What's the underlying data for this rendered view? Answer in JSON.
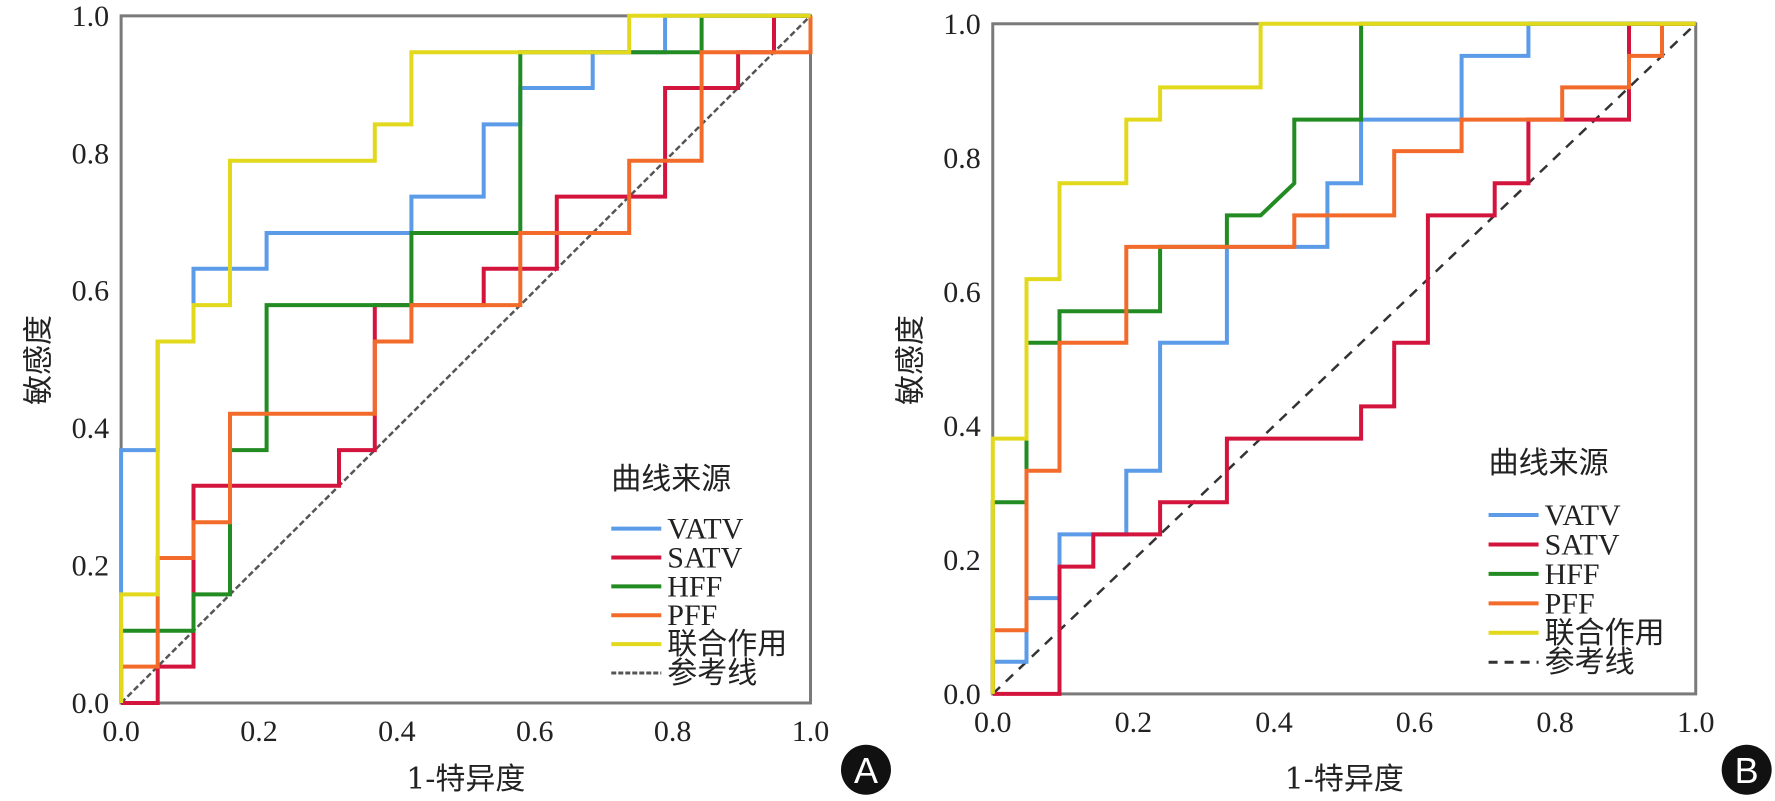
{
  "chart_data": [
    {
      "type": "line",
      "panel_label": "A",
      "title": "",
      "xlabel": "1-特异度",
      "ylabel": "敏感度",
      "xlim": [
        0,
        1
      ],
      "ylim": [
        0,
        1
      ],
      "xticks": [
        "0.0",
        "0.2",
        "0.4",
        "0.6",
        "0.8",
        "1.0"
      ],
      "yticks": [
        "0.0",
        "0.2",
        "0.4",
        "0.6",
        "0.8",
        "1.0"
      ],
      "grid": false,
      "legend": {
        "title": "曲线来源",
        "position": "bottom-right",
        "boxed": false
      },
      "series": [
        {
          "name": "VATV",
          "color": "#5b9be8",
          "dash": false,
          "x": [
            0,
            0,
            0.053,
            0.053,
            0.105,
            0.105,
            0.211,
            0.211,
            0.421,
            0.421,
            0.526,
            0.526,
            0.579,
            0.579,
            0.684,
            0.684,
            0.789,
            0.789,
            1
          ],
          "y": [
            0,
            0.368,
            0.368,
            0.526,
            0.526,
            0.632,
            0.632,
            0.684,
            0.684,
            0.737,
            0.737,
            0.842,
            0.842,
            0.895,
            0.895,
            0.947,
            0.947,
            1,
            1
          ]
        },
        {
          "name": "SATV",
          "color": "#d3143c",
          "dash": false,
          "x": [
            0,
            0.053,
            0.053,
            0.105,
            0.105,
            0.316,
            0.316,
            0.368,
            0.368,
            0.526,
            0.526,
            0.632,
            0.632,
            0.789,
            0.789,
            0.895,
            0.895,
            0.947,
            0.947,
            1
          ],
          "y": [
            0,
            0,
            0.053,
            0.053,
            0.316,
            0.316,
            0.368,
            0.368,
            0.579,
            0.579,
            0.632,
            0.632,
            0.737,
            0.737,
            0.895,
            0.895,
            0.947,
            0.947,
            1,
            1
          ]
        },
        {
          "name": "HFF",
          "color": "#228b22",
          "dash": false,
          "x": [
            0,
            0,
            0.105,
            0.105,
            0.158,
            0.158,
            0.211,
            0.211,
            0.421,
            0.421,
            0.579,
            0.579,
            0.842,
            0.842,
            1
          ],
          "y": [
            0,
            0.105,
            0.105,
            0.158,
            0.158,
            0.368,
            0.368,
            0.579,
            0.579,
            0.684,
            0.684,
            0.947,
            0.947,
            1,
            1
          ]
        },
        {
          "name": "PFF",
          "color": "#f26b2a",
          "dash": false,
          "x": [
            0,
            0,
            0.053,
            0.053,
            0.105,
            0.105,
            0.158,
            0.158,
            0.368,
            0.368,
            0.421,
            0.421,
            0.579,
            0.579,
            0.737,
            0.737,
            0.842,
            0.842,
            1,
            1
          ],
          "y": [
            0,
            0.053,
            0.053,
            0.211,
            0.211,
            0.263,
            0.263,
            0.421,
            0.421,
            0.526,
            0.526,
            0.579,
            0.579,
            0.684,
            0.684,
            0.789,
            0.789,
            0.947,
            0.947,
            1
          ]
        },
        {
          "name": "联合作用",
          "color": "#e3d91c",
          "dash": false,
          "x": [
            0,
            0,
            0.053,
            0.053,
            0.105,
            0.105,
            0.158,
            0.158,
            0.368,
            0.368,
            0.421,
            0.421,
            0.737,
            0.737,
            1
          ],
          "y": [
            0,
            0.158,
            0.158,
            0.526,
            0.526,
            0.579,
            0.579,
            0.789,
            0.789,
            0.842,
            0.842,
            0.947,
            0.947,
            1,
            1
          ]
        },
        {
          "name": "参考线",
          "color": "#555555",
          "dash": true,
          "x": [
            0,
            1
          ],
          "y": [
            0,
            1
          ]
        }
      ]
    },
    {
      "type": "line",
      "panel_label": "B",
      "title": "",
      "xlabel": "1-特异度",
      "ylabel": "敏感度",
      "xlim": [
        0,
        1
      ],
      "ylim": [
        0,
        1
      ],
      "xticks": [
        "0.0",
        "0.2",
        "0.4",
        "0.6",
        "0.8",
        "1.0"
      ],
      "yticks": [
        "0.0",
        "0.2",
        "0.4",
        "0.6",
        "0.8",
        "1.0"
      ],
      "grid": false,
      "legend": {
        "title": "曲线来源",
        "position": "bottom-right",
        "boxed": false
      },
      "series": [
        {
          "name": "VATV",
          "color": "#5b9be8",
          "dash": false,
          "x": [
            0,
            0,
            0.048,
            0.048,
            0.095,
            0.095,
            0.19,
            0.19,
            0.238,
            0.238,
            0.333,
            0.333,
            0.476,
            0.476,
            0.524,
            0.524,
            0.667,
            0.667,
            0.762,
            0.762,
            1
          ],
          "y": [
            0,
            0.048,
            0.048,
            0.143,
            0.143,
            0.238,
            0.238,
            0.333,
            0.333,
            0.524,
            0.524,
            0.667,
            0.667,
            0.762,
            0.762,
            0.857,
            0.857,
            0.952,
            0.952,
            1,
            1
          ]
        },
        {
          "name": "SATV",
          "color": "#d3143c",
          "dash": false,
          "x": [
            0,
            0.095,
            0.095,
            0.143,
            0.143,
            0.238,
            0.238,
            0.333,
            0.333,
            0.524,
            0.524,
            0.571,
            0.571,
            0.619,
            0.619,
            0.714,
            0.714,
            0.762,
            0.762,
            0.905,
            0.905,
            1
          ],
          "y": [
            0,
            0,
            0.19,
            0.19,
            0.238,
            0.238,
            0.286,
            0.286,
            0.381,
            0.381,
            0.429,
            0.429,
            0.524,
            0.524,
            0.714,
            0.714,
            0.762,
            0.762,
            0.857,
            0.857,
            1,
            1
          ]
        },
        {
          "name": "HFF",
          "color": "#228b22",
          "dash": false,
          "x": [
            0,
            0,
            0.048,
            0.048,
            0.095,
            0.095,
            0.238,
            0.238,
            0.333,
            0.333,
            0.381,
            0.429,
            0.429,
            0.524,
            0.524,
            1
          ],
          "y": [
            0,
            0.286,
            0.286,
            0.524,
            0.524,
            0.571,
            0.571,
            0.667,
            0.667,
            0.714,
            0.714,
            0.762,
            0.857,
            0.857,
            1,
            1
          ]
        },
        {
          "name": "PFF",
          "color": "#f26b2a",
          "dash": false,
          "x": [
            0,
            0,
            0.048,
            0.048,
            0.095,
            0.095,
            0.19,
            0.19,
            0.429,
            0.429,
            0.571,
            0.571,
            0.667,
            0.667,
            0.81,
            0.81,
            0.905,
            0.905,
            0.952,
            0.952,
            1
          ],
          "y": [
            0,
            0.095,
            0.095,
            0.333,
            0.333,
            0.524,
            0.524,
            0.667,
            0.667,
            0.714,
            0.714,
            0.81,
            0.81,
            0.857,
            0.857,
            0.905,
            0.905,
            0.952,
            0.952,
            1,
            1
          ]
        },
        {
          "name": "联合作用",
          "color": "#e3d91c",
          "dash": false,
          "x": [
            0,
            0,
            0.048,
            0.048,
            0.095,
            0.095,
            0.19,
            0.19,
            0.238,
            0.238,
            0.381,
            0.381,
            1
          ],
          "y": [
            0,
            0.381,
            0.381,
            0.619,
            0.619,
            0.762,
            0.762,
            0.857,
            0.857,
            0.905,
            0.905,
            1,
            1
          ]
        },
        {
          "name": "参考线",
          "color": "#333333",
          "dash": true,
          "x": [
            0,
            1
          ],
          "y": [
            0,
            1
          ]
        }
      ]
    }
  ]
}
